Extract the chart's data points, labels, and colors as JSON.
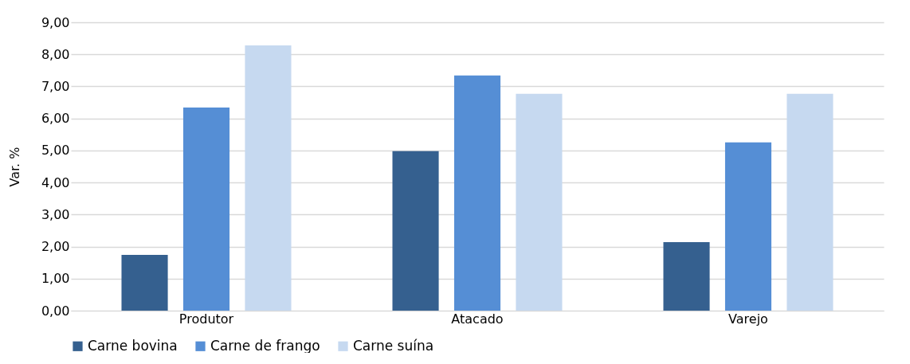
{
  "chart_data": {
    "type": "bar",
    "ylabel": "Var. %",
    "categories": [
      "Produtor",
      "Atacado",
      "Varejo"
    ],
    "series": [
      {
        "name": "Carne bovina",
        "color": "#35608f",
        "values": [
          1.74,
          4.98,
          2.14
        ]
      },
      {
        "name": "Carne de frango",
        "color": "#558ed5",
        "values": [
          6.34,
          7.34,
          5.25
        ]
      },
      {
        "name": "Carne suína",
        "color": "#c6d9f0",
        "values": [
          8.28,
          6.77,
          6.77
        ]
      }
    ],
    "ylim": [
      0,
      9
    ],
    "yticks": [
      {
        "value": 0,
        "label": "0,00"
      },
      {
        "value": 1,
        "label": "1,00"
      },
      {
        "value": 2,
        "label": "2,00"
      },
      {
        "value": 3,
        "label": "3,00"
      },
      {
        "value": 4,
        "label": "4,00"
      },
      {
        "value": 5,
        "label": "5,00"
      },
      {
        "value": 6,
        "label": "6,00"
      },
      {
        "value": 7,
        "label": "7,00"
      },
      {
        "value": 8,
        "label": "8,00"
      },
      {
        "value": 9,
        "label": "9,00"
      }
    ],
    "grid": "y",
    "legend": "bottom"
  }
}
